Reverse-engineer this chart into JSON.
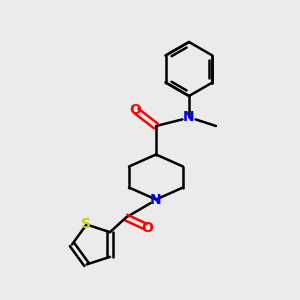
{
  "bg_color": "#ebebeb",
  "bond_color": "#000000",
  "N_color": "#0000ff",
  "O_color": "#ff0000",
  "S_color": "#cccc00",
  "line_width": 1.8,
  "font_size": 10,
  "figsize": [
    3.0,
    3.0
  ],
  "dpi": 100,
  "xlim": [
    0,
    10
  ],
  "ylim": [
    0,
    10
  ]
}
